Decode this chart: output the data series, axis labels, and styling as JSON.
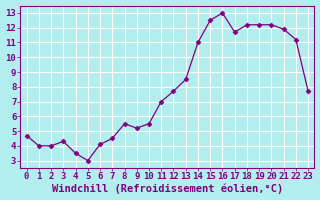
{
  "x": [
    0,
    1,
    2,
    3,
    4,
    5,
    6,
    7,
    8,
    9,
    10,
    11,
    12,
    13,
    14,
    15,
    16,
    17,
    18,
    19,
    20,
    21,
    22,
    23
  ],
  "y": [
    4.7,
    4.0,
    4.0,
    4.3,
    3.5,
    3.0,
    4.1,
    4.5,
    5.5,
    5.2,
    5.5,
    7.0,
    7.7,
    8.5,
    11.0,
    12.5,
    13.0,
    11.7,
    12.2,
    12.2,
    12.2,
    11.9,
    11.2,
    7.7
  ],
  "line_color": "#800080",
  "marker": "D",
  "marker_size": 2.5,
  "background_color": "#b2eeee",
  "grid_color": "#c0e8e8",
  "xlabel": "Windchill (Refroidissement éolien,°C)",
  "ylabel": "",
  "title": "",
  "xlim": [
    -0.5,
    23.5
  ],
  "ylim": [
    2.5,
    13.5
  ],
  "yticks": [
    3,
    4,
    5,
    6,
    7,
    8,
    9,
    10,
    11,
    12,
    13
  ],
  "xticks": [
    0,
    1,
    2,
    3,
    4,
    5,
    6,
    7,
    8,
    9,
    10,
    11,
    12,
    13,
    14,
    15,
    16,
    17,
    18,
    19,
    20,
    21,
    22,
    23
  ],
  "tick_color": "#800080",
  "label_color": "#800080",
  "tick_fontsize": 6.5,
  "xlabel_fontsize": 7.5,
  "fig_width": 3.2,
  "fig_height": 2.0,
  "dpi": 100
}
